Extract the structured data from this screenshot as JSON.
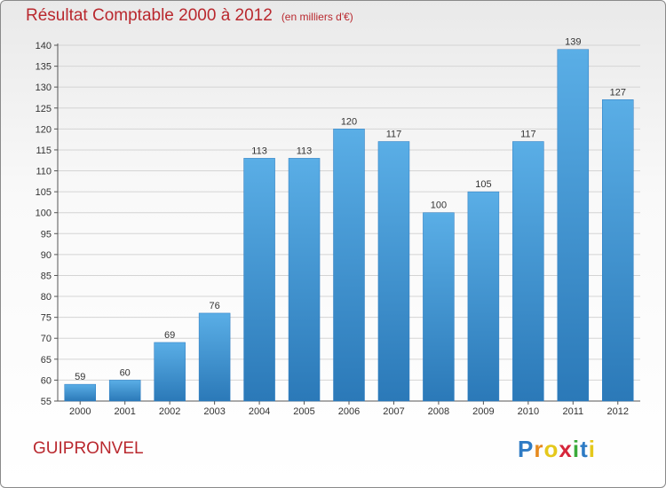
{
  "header": {
    "title": "Résultat Comptable 2000 à 2012",
    "subtitle": "(en milliers d'€)"
  },
  "footer": {
    "city": "GUIPRONVEL",
    "logo_letters": [
      "P",
      "r",
      "o",
      "x",
      "i",
      "t",
      "i"
    ]
  },
  "colors": {
    "title": "#b9282e",
    "bar_top": "#5aaee6",
    "bar_bottom": "#2b79b8",
    "logo": [
      "#2e7bc4",
      "#e68a1e",
      "#e5c81b",
      "#d6263a",
      "#3aaa3a",
      "#2e7bc4",
      "#e5c81b"
    ]
  },
  "chart_data": {
    "type": "bar",
    "title": "Résultat Comptable 2000 à 2012",
    "subtitle": "(en milliers d'€)",
    "categories": [
      "2000",
      "2001",
      "2002",
      "2003",
      "2004",
      "2005",
      "2006",
      "2007",
      "2008",
      "2009",
      "2010",
      "2011",
      "2012"
    ],
    "values": [
      59,
      60,
      69,
      76,
      113,
      113,
      120,
      117,
      100,
      105,
      117,
      139,
      127
    ],
    "ylim": [
      55,
      140
    ],
    "yticks": [
      55,
      60,
      65,
      70,
      75,
      80,
      85,
      90,
      95,
      100,
      105,
      110,
      115,
      120,
      125,
      130,
      135,
      140
    ],
    "grid": true,
    "legend": "none"
  }
}
